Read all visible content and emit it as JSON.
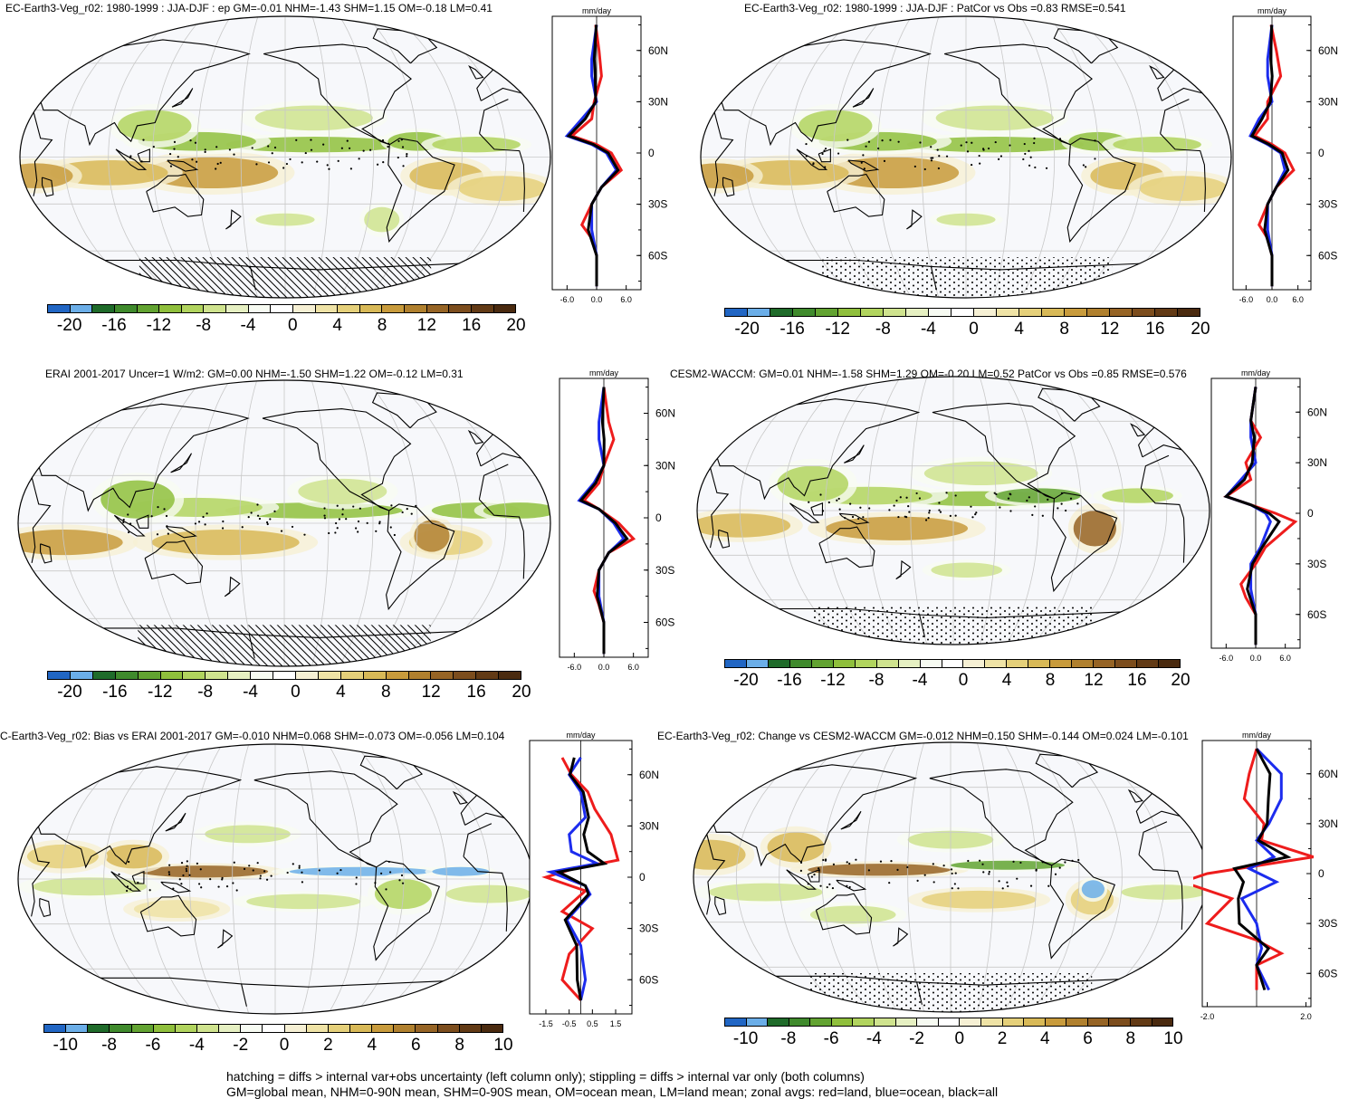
{
  "panels": [
    {
      "id": "p1",
      "title": "EC-Earth3-Veg_r02: 1980-1999 : JJA-DJF : ep GM=-0.01 NHM=-1.43 SHM=1.15 OM=-0.18 LM=0.41",
      "overlay": "hatch",
      "zonal": {
        "unit": "mm/day",
        "ticks": [
          "-6.0",
          "0.0",
          "6.0"
        ],
        "lats": [
          "60N",
          "30N",
          "0",
          "30S",
          "60S"
        ],
        "lat_side": "right"
      },
      "colorbar": {
        "labels": [
          "-20",
          "-16",
          "-12",
          "-8",
          "-4",
          "0",
          "4",
          "8",
          "12",
          "16",
          "20"
        ]
      }
    },
    {
      "id": "p2",
      "title": "EC-Earth3-Veg_r02: 1980-1999 : JJA-DJF : PatCor vs Obs =0.83 RMSE=0.541",
      "overlay": "stipple",
      "zonal": {
        "unit": "mm/day",
        "ticks": [
          "-6.0",
          "0.0",
          "6.0"
        ],
        "lats": [
          "60N",
          "30N",
          "0",
          "30S",
          "60S"
        ],
        "lat_side": "right"
      },
      "colorbar": {
        "labels": [
          "-20",
          "-16",
          "-12",
          "-8",
          "-4",
          "0",
          "4",
          "8",
          "12",
          "16",
          "20"
        ]
      }
    },
    {
      "id": "p3",
      "title": "ERAI 2001-2017 Uncer=1 W/m2: GM=0.00 NHM=-1.50 SHM=1.22 OM=-0.12 LM=0.31",
      "overlay": "hatch",
      "zonal": {
        "unit": "mm/day",
        "ticks": [
          "-6.0",
          "0.0",
          "6.0"
        ],
        "lats": [
          "60N",
          "30N",
          "0",
          "30S",
          "60S"
        ],
        "lat_side": "right"
      },
      "colorbar": {
        "labels": [
          "-20",
          "-16",
          "-12",
          "-8",
          "-4",
          "0",
          "4",
          "8",
          "12",
          "16",
          "20"
        ]
      }
    },
    {
      "id": "p4",
      "title": "CESM2-WACCM: GM=0.01 NHM=-1.58 SHM=1.29 OM=-0.20 LM=0.52 PatCor vs Obs =0.85 RMSE=0.576",
      "overlay": "stipple",
      "zonal": {
        "unit": "mm/day",
        "ticks": [
          "-6.0",
          "0.0",
          "6.0"
        ],
        "lats": [
          "60N",
          "30N",
          "0",
          "30S",
          "60S"
        ],
        "lat_side": "right"
      },
      "colorbar": {
        "labels": [
          "-20",
          "-16",
          "-12",
          "-8",
          "-4",
          "0",
          "4",
          "8",
          "12",
          "16",
          "20"
        ]
      }
    },
    {
      "id": "p5",
      "title": "C-Earth3-Veg_r02: Bias vs ERAI 2001-2017 GM=-0.010 NHM=0.068 SHM=-0.073 OM=-0.056 LM=0.104",
      "overlay": "none",
      "zonal": {
        "unit": "mm/day",
        "ticks": [
          "-1.5",
          "-0.5",
          "0.5",
          "1.5"
        ],
        "lats": [
          "60N",
          "30N",
          "0",
          "30S",
          "60S"
        ],
        "lat_side": "right"
      },
      "colorbar": {
        "labels": [
          "-10",
          "-8",
          "-6",
          "-4",
          "-2",
          "0",
          "2",
          "4",
          "6",
          "8",
          "10"
        ]
      }
    },
    {
      "id": "p6",
      "title": "EC-Earth3-Veg_r02: Change vs CESM2-WACCM GM=-0.012 NHM=0.150 SHM=-0.144 OM=0.024 LM=-0.101",
      "overlay": "stipple",
      "zonal": {
        "unit": "mm/day",
        "ticks": [
          "-2.0",
          "2.0"
        ],
        "lats": [
          "60N",
          "30N",
          "0",
          "30S",
          "60S"
        ],
        "lat_side": "right"
      },
      "colorbar": {
        "labels": [
          "-10",
          "-8",
          "-6",
          "-4",
          "-2",
          "0",
          "2",
          "4",
          "6",
          "8",
          "10"
        ]
      }
    }
  ],
  "colorbar_colors": [
    "#2166c4",
    "#6baee8",
    "#1f6b2a",
    "#3f8a2c",
    "#62a331",
    "#8fbf3c",
    "#b1d45e",
    "#cfe38e",
    "#e6f0c2",
    "#f7fbf2",
    "#ffffff",
    "#f6f0d4",
    "#efe3a6",
    "#e5d07a",
    "#d8b957",
    "#c89b3c",
    "#b0802e",
    "#966425",
    "#7c4d1d",
    "#623a15",
    "#4a2a0f"
  ],
  "zonal_colors": {
    "land": "#ee1c1c",
    "ocean": "#1c2cee",
    "all": "#000000"
  },
  "footer": {
    "line1": "hatching = diffs > internal var+obs uncertainty (left column only); stippling = diffs > internal var only (both columns)",
    "line2": "GM=global mean, NHM=0-90N mean, SHM=0-90S mean, OM=ocean mean, LM=land mean; zonal avgs: red=land, blue=ocean, black=all"
  }
}
